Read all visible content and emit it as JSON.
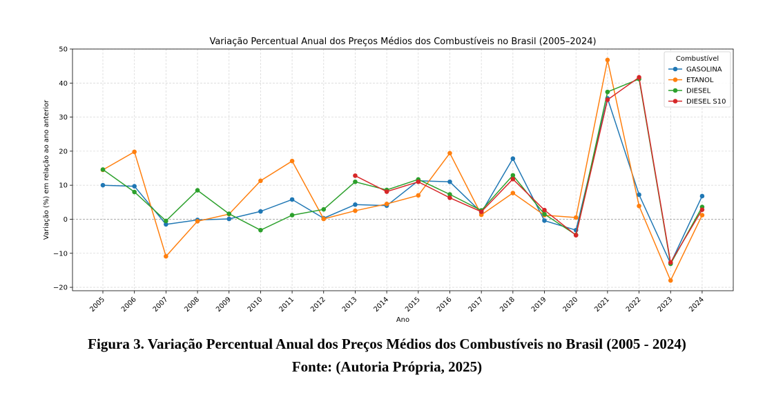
{
  "chart_data": {
    "type": "line",
    "title": "Variação Percentual Anual dos Preços Médios dos Combustíveis no Brasil (2005–2024)",
    "xlabel": "Ano",
    "ylabel": "Variação (%) em relação ao ano anterior",
    "categories": [
      "2005",
      "2006",
      "2007",
      "2008",
      "2009",
      "2010",
      "2011",
      "2012",
      "2013",
      "2014",
      "2015",
      "2016",
      "2017",
      "2018",
      "2019",
      "2020",
      "2021",
      "2022",
      "2023",
      "2024"
    ],
    "ylim": [
      -21,
      50
    ],
    "yticks": [
      -20,
      -10,
      0,
      10,
      20,
      30,
      40,
      50
    ],
    "ytick_labels": [
      "−20",
      "−10",
      "0",
      "10",
      "20",
      "30",
      "40",
      "50"
    ],
    "grid": true,
    "reference_line_y": 0,
    "legend": {
      "title": "Combustível",
      "placement": "top-right"
    },
    "series": [
      {
        "name": "GASOLINA",
        "color": "#1f77b4",
        "values": [
          10.0,
          9.7,
          -1.5,
          -0.2,
          0.1,
          2.3,
          5.8,
          0.3,
          4.3,
          4.0,
          11.3,
          11.0,
          2.0,
          17.8,
          -0.4,
          -3.2,
          35.5,
          7.2,
          -13.0,
          6.8
        ]
      },
      {
        "name": "ETANOL",
        "color": "#ff7f0e",
        "values": [
          14.5,
          19.8,
          -10.9,
          -0.6,
          1.5,
          11.3,
          17.1,
          0.1,
          2.5,
          4.5,
          7.0,
          19.4,
          1.3,
          7.7,
          1.2,
          0.5,
          46.8,
          3.9,
          -18.0,
          1.2
        ]
      },
      {
        "name": "DIESEL",
        "color": "#2ca02c",
        "values": [
          14.6,
          8.0,
          -0.5,
          8.5,
          1.6,
          -3.2,
          1.2,
          2.9,
          11.0,
          8.6,
          11.7,
          7.3,
          2.6,
          12.9,
          1.5,
          -4.6,
          37.4,
          41.2,
          -13.1,
          3.6
        ]
      },
      {
        "name": "DIESEL S10",
        "color": "#d62728",
        "values": [
          null,
          null,
          null,
          null,
          null,
          null,
          null,
          null,
          12.8,
          8.1,
          11.0,
          6.3,
          2.2,
          11.8,
          2.7,
          -4.7,
          35.1,
          41.7,
          -12.7,
          2.8
        ]
      }
    ]
  },
  "caption": {
    "figure": "Figura 3. Variação Percentual Anual dos Preços Médios dos Combustíveis no Brasil (2005 - 2024)",
    "source": "Fonte: (Autoria Própria, 2025)"
  }
}
